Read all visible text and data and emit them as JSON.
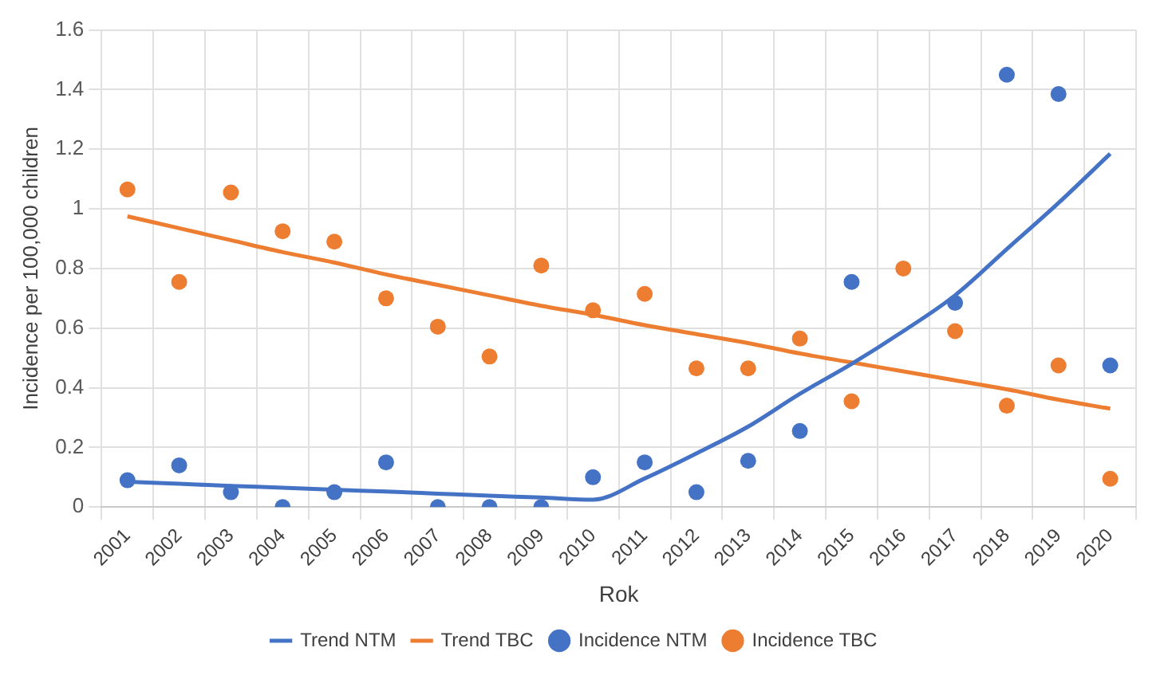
{
  "chart_data": {
    "type": "scatter",
    "xlabel": "Rok",
    "ylabel": "Incidence per 100,000 children",
    "categories": [
      "2001",
      "2002",
      "2003",
      "2004",
      "2005",
      "2006",
      "2007",
      "2008",
      "2009",
      "2010",
      "2011",
      "2012",
      "2013",
      "2014",
      "2015",
      "2016",
      "2017",
      "2018",
      "2019",
      "2020"
    ],
    "series": [
      {
        "name": "Trend NTM",
        "type": "line",
        "color": "#4472c4",
        "marker": "none",
        "values": [
          0.085,
          0.078,
          0.071,
          0.065,
          0.058,
          0.052,
          0.045,
          0.038,
          0.032,
          0.025,
          0.096,
          0.18,
          0.27,
          0.38,
          0.48,
          0.59,
          0.71,
          0.865,
          1.02,
          1.185
        ]
      },
      {
        "name": "Trend TBC",
        "type": "line",
        "color": "#ed7d31",
        "marker": "none",
        "values": [
          0.975,
          0.935,
          0.895,
          0.855,
          0.82,
          0.78,
          0.745,
          0.71,
          0.675,
          0.645,
          0.61,
          0.58,
          0.55,
          0.515,
          0.485,
          0.455,
          0.425,
          0.395,
          0.36,
          0.33
        ]
      },
      {
        "name": "Incidence NTM",
        "color": "#4472c4",
        "marker": "circle",
        "values": [
          0.09,
          0.14,
          0.05,
          0,
          0.05,
          0.15,
          0,
          0,
          0,
          0.1,
          0.15,
          0.05,
          0.155,
          0.255,
          0.755,
          null,
          0.685,
          1.45,
          1.385,
          0.475
        ]
      },
      {
        "name": "Incidence TBC",
        "color": "#ed7d31",
        "marker": "circle",
        "values": [
          1.065,
          0.755,
          1.055,
          0.925,
          0.89,
          0.7,
          0.605,
          0.505,
          0.81,
          0.66,
          0.715,
          0.465,
          0.465,
          0.565,
          0.355,
          0.8,
          0.59,
          0.34,
          0.475,
          0.095
        ]
      }
    ],
    "ylim": [
      0,
      1.6
    ],
    "yticks": [
      0,
      0.2,
      0.4,
      0.6,
      0.8,
      1,
      1.2,
      1.4,
      1.6
    ],
    "grid": true,
    "legend": "bottom"
  }
}
